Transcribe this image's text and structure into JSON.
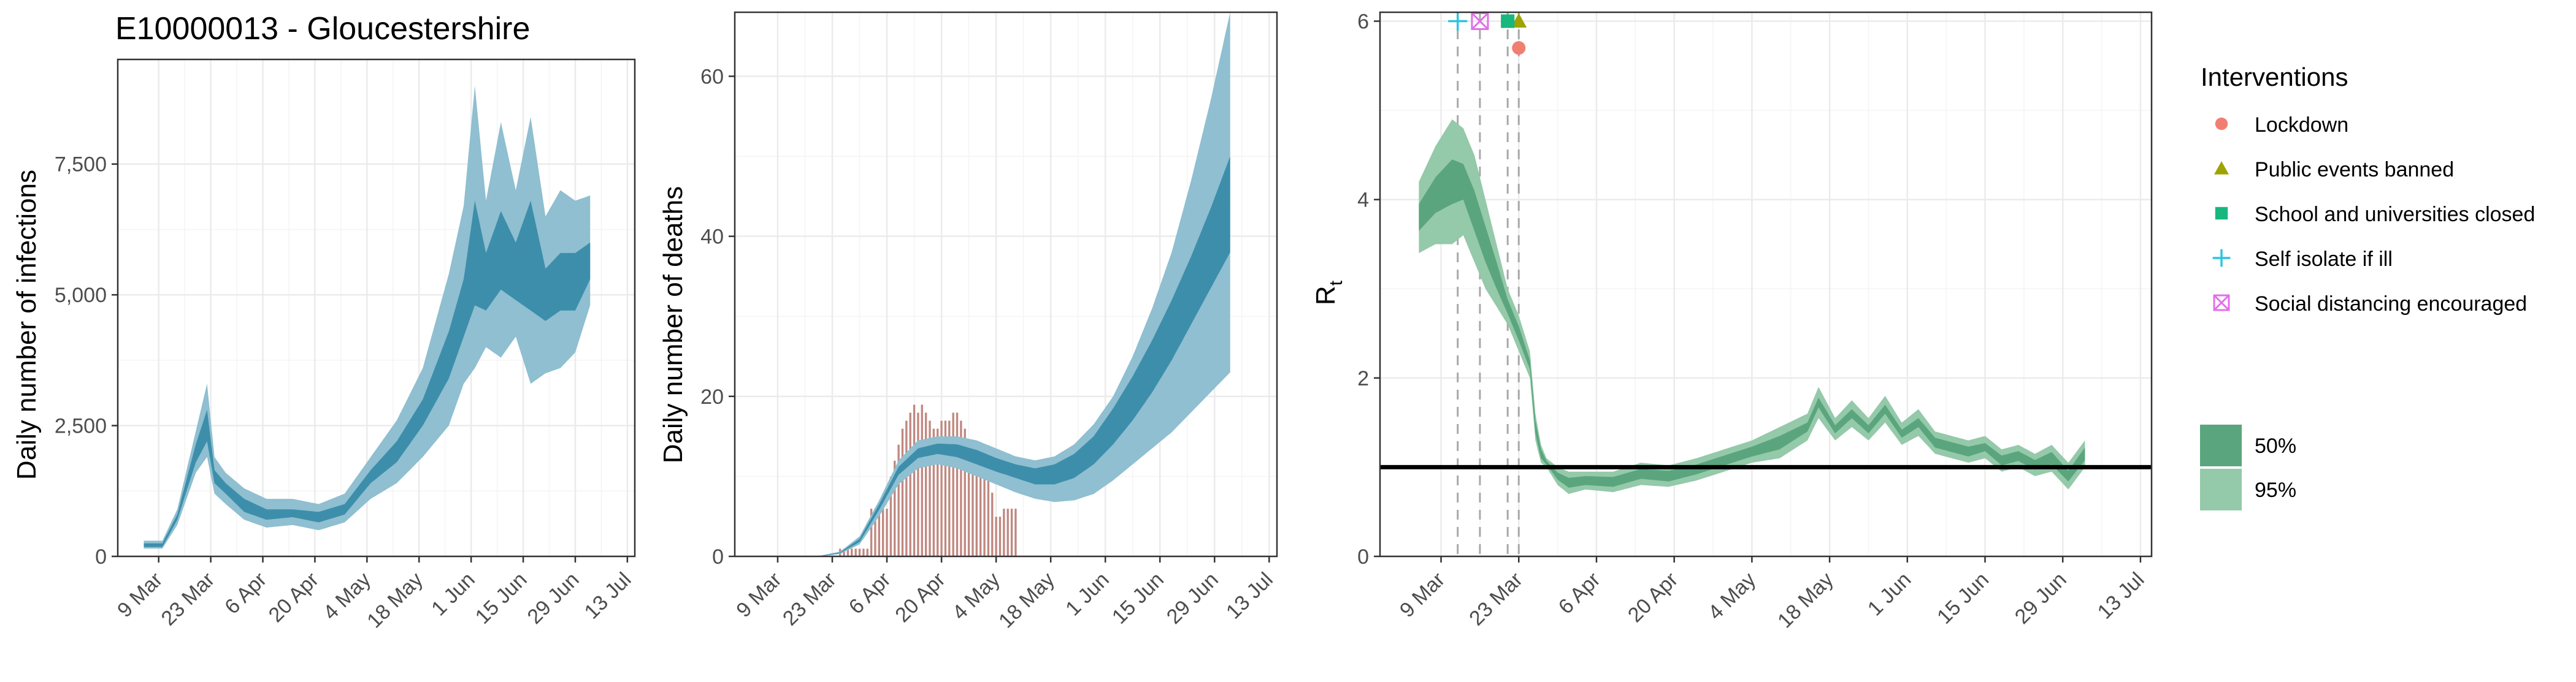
{
  "chart_data": [
    {
      "type": "area",
      "title": "E10000013 - Gloucestershire",
      "xlabel": "",
      "ylabel": "Daily number of infections",
      "x_ticks": [
        "9 Mar",
        "23 Mar",
        "6 Apr",
        "20 Apr",
        "4 May",
        "18 May",
        "1 Jun",
        "15 Jun",
        "29 Jun",
        "13 Jul"
      ],
      "y_ticks": [
        "0",
        "2,500",
        "5,000",
        "7,500"
      ],
      "ylim": [
        0,
        9500
      ],
      "x_range_days": [
        "2020-02-28",
        "2020-07-15"
      ],
      "start_date": "2020-03-05",
      "colors": {
        "band95": "#8fbfd0",
        "band50": "#3d8eab"
      },
      "series": [
        {
          "name": "",
          "interval": "95%",
          "anchors_day": [
            0,
            5,
            9,
            14,
            17,
            19,
            22,
            27,
            33,
            40,
            47,
            54,
            61,
            68,
            75,
            82,
            86,
            89,
            92,
            96,
            100,
            104,
            108,
            112,
            116,
            120
          ],
          "lower": [
            150,
            150,
            600,
            1600,
            1900,
            1200,
            1000,
            700,
            550,
            600,
            500,
            650,
            1100,
            1400,
            1900,
            2500,
            3300,
            3600,
            4000,
            3800,
            4200,
            3300,
            3500,
            3600,
            3900,
            4800
          ],
          "upper": [
            300,
            300,
            900,
            2400,
            3300,
            1900,
            1600,
            1300,
            1100,
            1100,
            1000,
            1200,
            1900,
            2600,
            3600,
            5400,
            6700,
            9000,
            6800,
            8300,
            7000,
            8400,
            6500,
            7000,
            6800,
            6900
          ]
        },
        {
          "name": "",
          "interval": "50%",
          "anchors_day": [
            0,
            5,
            9,
            14,
            17,
            19,
            22,
            27,
            33,
            40,
            47,
            54,
            61,
            68,
            75,
            82,
            86,
            89,
            92,
            96,
            100,
            104,
            108,
            112,
            116,
            120
          ],
          "lower": [
            180,
            180,
            700,
            1800,
            2200,
            1400,
            1200,
            850,
            700,
            750,
            650,
            800,
            1400,
            1800,
            2500,
            3400,
            4200,
            4800,
            4700,
            5100,
            4900,
            4700,
            4500,
            4700,
            4700,
            5300
          ],
          "upper": [
            250,
            250,
            800,
            2150,
            2800,
            1650,
            1400,
            1100,
            900,
            900,
            850,
            1000,
            1650,
            2200,
            3000,
            4300,
            5300,
            6800,
            5800,
            6600,
            6000,
            6800,
            5500,
            5800,
            5800,
            6000
          ]
        }
      ]
    },
    {
      "type": "area",
      "title": "",
      "xlabel": "",
      "ylabel": "Daily number of deaths",
      "x_ticks": [
        "9 Mar",
        "23 Mar",
        "6 Apr",
        "20 Apr",
        "4 May",
        "18 May",
        "1 Jun",
        "15 Jun",
        "29 Jun",
        "13 Jul"
      ],
      "y_ticks": [
        "0",
        "20",
        "40",
        "60"
      ],
      "ylim": [
        0,
        68
      ],
      "start_date": "2020-03-05",
      "colors": {
        "band95": "#8fbfd0",
        "band50": "#3d8eab",
        "bars": "#c08880"
      },
      "observed_deaths_start": "2020-03-25",
      "observed_deaths": [
        1,
        1,
        1,
        1,
        1,
        1,
        1,
        1,
        6,
        6,
        6,
        6,
        6,
        10,
        12,
        14,
        16,
        17,
        18,
        19,
        18,
        19,
        18,
        17,
        16,
        16,
        17,
        17,
        17,
        18,
        18,
        17,
        16,
        14,
        13,
        12,
        11,
        10,
        12,
        8,
        5,
        5,
        6,
        6,
        6,
        6
      ],
      "series": [
        {
          "name": "",
          "interval": "95%",
          "anchors_day": [
            0,
            5,
            10,
            15,
            20,
            25,
            30,
            35,
            40,
            45,
            50,
            55,
            60,
            65,
            70,
            75,
            80,
            85,
            90,
            95,
            100,
            105,
            110,
            115,
            120
          ],
          "lower": [
            0,
            0,
            0,
            0,
            0.3,
            1.5,
            5,
            9,
            11,
            11.5,
            11,
            10,
            9,
            8,
            7.2,
            6.8,
            7,
            7.8,
            9.5,
            11.5,
            13.5,
            15.5,
            18,
            20.5,
            23
          ],
          "upper": [
            0,
            0,
            0,
            0.1,
            0.6,
            2.5,
            7,
            12,
            14.5,
            15,
            15,
            14.5,
            13.5,
            12.5,
            12,
            12.5,
            14,
            16.5,
            20,
            25,
            31,
            38,
            47,
            57,
            68
          ]
        },
        {
          "name": "",
          "interval": "50%",
          "anchors_day": [
            0,
            5,
            10,
            15,
            20,
            25,
            30,
            35,
            40,
            45,
            50,
            55,
            60,
            65,
            70,
            75,
            80,
            85,
            90,
            95,
            100,
            105,
            110,
            115,
            120
          ],
          "lower": [
            0,
            0,
            0,
            0,
            0.4,
            1.8,
            5.8,
            10.2,
            12.3,
            12.8,
            12.4,
            11.5,
            10.6,
            9.8,
            9,
            9,
            9.8,
            11.5,
            14,
            17,
            20.5,
            24.5,
            29,
            33.5,
            38
          ],
          "upper": [
            0,
            0,
            0,
            0.05,
            0.5,
            2.2,
            6.5,
            11.2,
            13.5,
            14.1,
            14,
            13.3,
            12.3,
            11.5,
            11,
            11.5,
            12.8,
            15,
            18.5,
            22.5,
            27,
            32,
            37.5,
            43.5,
            50
          ]
        }
      ]
    },
    {
      "type": "area",
      "title": "",
      "xlabel": "",
      "ylabel": "R",
      "ylabel_subscript": "t",
      "x_ticks": [
        "9 Mar",
        "23 Mar",
        "6 Apr",
        "20 Apr",
        "4 May",
        "18 May",
        "1 Jun",
        "15 Jun",
        "29 Jun",
        "13 Jul"
      ],
      "y_ticks": [
        "0",
        "2",
        "4",
        "6"
      ],
      "ylim": [
        0,
        6.1
      ],
      "start_date": "2020-03-05",
      "reference_line": 1,
      "colors": {
        "band95": "#94c9a9",
        "band50": "#5aa57d",
        "reference": "#000000"
      },
      "series": [
        {
          "name": "",
          "interval": "95%",
          "anchors_day": [
            0,
            3,
            6,
            8,
            10,
            12,
            14,
            16,
            18,
            20,
            21,
            22,
            23,
            25,
            27,
            30,
            35,
            40,
            45,
            50,
            55,
            60,
            65,
            70,
            72,
            75,
            78,
            81,
            84,
            87,
            90,
            93,
            96,
            99,
            102,
            105,
            108,
            111,
            114,
            117,
            120
          ],
          "lower": [
            3.4,
            3.5,
            3.5,
            3.6,
            3.3,
            3.0,
            2.8,
            2.6,
            2.3,
            2.0,
            1.3,
            1.05,
            1.0,
            0.8,
            0.7,
            0.75,
            0.72,
            0.8,
            0.78,
            0.85,
            0.95,
            1.05,
            1.1,
            1.3,
            1.55,
            1.3,
            1.45,
            1.3,
            1.5,
            1.25,
            1.35,
            1.15,
            1.1,
            1.05,
            1.1,
            0.95,
            1.0,
            0.9,
            0.95,
            0.75,
            1.0
          ],
          "upper": [
            4.2,
            4.6,
            4.9,
            4.8,
            4.5,
            4.0,
            3.5,
            3.0,
            2.7,
            2.3,
            1.6,
            1.25,
            1.1,
            1.0,
            0.95,
            0.95,
            0.95,
            1.05,
            1.02,
            1.1,
            1.2,
            1.3,
            1.45,
            1.6,
            1.9,
            1.55,
            1.75,
            1.55,
            1.8,
            1.5,
            1.65,
            1.4,
            1.35,
            1.3,
            1.35,
            1.2,
            1.25,
            1.15,
            1.25,
            1.05,
            1.3
          ]
        },
        {
          "name": "",
          "interval": "50%",
          "anchors_day": [
            0,
            3,
            6,
            8,
            10,
            12,
            14,
            16,
            18,
            20,
            21,
            22,
            23,
            25,
            27,
            30,
            35,
            40,
            45,
            50,
            55,
            60,
            65,
            70,
            72,
            75,
            78,
            81,
            84,
            87,
            90,
            93,
            96,
            99,
            102,
            105,
            108,
            111,
            114,
            117,
            120
          ],
          "lower": [
            3.65,
            3.85,
            3.95,
            4.0,
            3.65,
            3.3,
            3.0,
            2.72,
            2.42,
            2.1,
            1.38,
            1.1,
            1.03,
            0.86,
            0.77,
            0.8,
            0.78,
            0.87,
            0.84,
            0.92,
            1.02,
            1.12,
            1.2,
            1.4,
            1.67,
            1.38,
            1.55,
            1.38,
            1.6,
            1.33,
            1.45,
            1.22,
            1.17,
            1.12,
            1.18,
            1.02,
            1.07,
            0.97,
            1.03,
            0.84,
            1.08
          ],
          "upper": [
            3.95,
            4.25,
            4.45,
            4.4,
            4.1,
            3.7,
            3.3,
            2.88,
            2.58,
            2.2,
            1.52,
            1.2,
            1.07,
            0.94,
            0.88,
            0.9,
            0.89,
            0.98,
            0.96,
            1.03,
            1.13,
            1.23,
            1.35,
            1.5,
            1.78,
            1.47,
            1.65,
            1.47,
            1.7,
            1.42,
            1.55,
            1.33,
            1.28,
            1.23,
            1.27,
            1.13,
            1.18,
            1.08,
            1.17,
            0.96,
            1.22
          ]
        }
      ],
      "interventions": [
        {
          "name": "Lockdown",
          "date": "2020-03-23",
          "marker": "circle",
          "color": "#f07f72",
          "y": 5.7
        },
        {
          "name": "Public events banned",
          "date": "2020-03-23",
          "marker": "triangle",
          "color": "#9ea300",
          "y": 6.0
        },
        {
          "name": "School and universities closed",
          "date": "2020-03-21",
          "marker": "square",
          "color": "#17b77e",
          "y": 6.0
        },
        {
          "name": "Self isolate if ill",
          "date": "2020-03-12",
          "marker": "plus",
          "color": "#2bc5e0",
          "y": 6.0
        },
        {
          "name": "Social distancing encouraged",
          "date": "2020-03-16",
          "marker": "boxx",
          "color": "#e070e8",
          "y": 6.0
        }
      ]
    }
  ],
  "legend": {
    "interventions_title": "Interventions",
    "interventions": [
      {
        "label": "Lockdown",
        "marker": "circle",
        "color": "#f07f72"
      },
      {
        "label": "Public events banned",
        "marker": "triangle",
        "color": "#9ea300"
      },
      {
        "label": "School and universities closed",
        "marker": "square",
        "color": "#17b77e"
      },
      {
        "label": "Self isolate if ill",
        "marker": "plus",
        "color": "#2bc5e0"
      },
      {
        "label": "Social distancing encouraged",
        "marker": "boxx",
        "color": "#e070e8"
      }
    ],
    "intervals": [
      {
        "label": "50%",
        "color": "#5aa57d"
      },
      {
        "label": "95%",
        "color": "#94c9a9"
      }
    ]
  }
}
